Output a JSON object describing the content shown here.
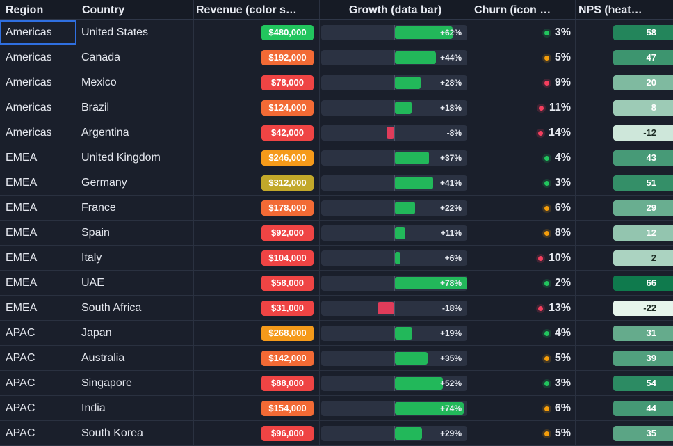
{
  "columns": {
    "region": "Region",
    "country": "Country",
    "revenue": "Revenue (color s…",
    "growth": "Growth (data bar)",
    "churn": "Churn (icon …",
    "nps": "NPS (heat…"
  },
  "rows": [
    {
      "region": "Americas",
      "country": "United States",
      "revenue": "$480,000",
      "growth": "+62%",
      "growth_value": 62,
      "churn": "3%",
      "churn_level": "ok",
      "nps": "58",
      "nps_value": 58
    },
    {
      "region": "Americas",
      "country": "Canada",
      "revenue": "$192,000",
      "growth": "+44%",
      "growth_value": 44,
      "churn": "5%",
      "churn_level": "warn",
      "nps": "47",
      "nps_value": 47
    },
    {
      "region": "Americas",
      "country": "Mexico",
      "revenue": "$78,000",
      "growth": "+28%",
      "growth_value": 28,
      "churn": "9%",
      "churn_level": "bad",
      "nps": "20",
      "nps_value": 20
    },
    {
      "region": "Americas",
      "country": "Brazil",
      "revenue": "$124,000",
      "growth": "+18%",
      "growth_value": 18,
      "churn": "11%",
      "churn_level": "bad",
      "nps": "8",
      "nps_value": 8
    },
    {
      "region": "Americas",
      "country": "Argentina",
      "revenue": "$42,000",
      "growth": "-8%",
      "growth_value": -8,
      "churn": "14%",
      "churn_level": "bad",
      "nps": "-12",
      "nps_value": -12
    },
    {
      "region": "EMEA",
      "country": "United Kingdom",
      "revenue": "$246,000",
      "growth": "+37%",
      "growth_value": 37,
      "churn": "4%",
      "churn_level": "ok",
      "nps": "43",
      "nps_value": 43
    },
    {
      "region": "EMEA",
      "country": "Germany",
      "revenue": "$312,000",
      "growth": "+41%",
      "growth_value": 41,
      "churn": "3%",
      "churn_level": "ok",
      "nps": "51",
      "nps_value": 51
    },
    {
      "region": "EMEA",
      "country": "France",
      "revenue": "$178,000",
      "growth": "+22%",
      "growth_value": 22,
      "churn": "6%",
      "churn_level": "warn",
      "nps": "29",
      "nps_value": 29
    },
    {
      "region": "EMEA",
      "country": "Spain",
      "revenue": "$92,000",
      "growth": "+11%",
      "growth_value": 11,
      "churn": "8%",
      "churn_level": "warn",
      "nps": "12",
      "nps_value": 12
    },
    {
      "region": "EMEA",
      "country": "Italy",
      "revenue": "$104,000",
      "growth": "+6%",
      "growth_value": 6,
      "churn": "10%",
      "churn_level": "bad",
      "nps": "2",
      "nps_value": 2
    },
    {
      "region": "EMEA",
      "country": "UAE",
      "revenue": "$58,000",
      "growth": "+78%",
      "growth_value": 78,
      "churn": "2%",
      "churn_level": "ok",
      "nps": "66",
      "nps_value": 66
    },
    {
      "region": "EMEA",
      "country": "South Africa",
      "revenue": "$31,000",
      "growth": "-18%",
      "growth_value": -18,
      "churn": "13%",
      "churn_level": "bad",
      "nps": "-22",
      "nps_value": -22
    },
    {
      "region": "APAC",
      "country": "Japan",
      "revenue": "$268,000",
      "growth": "+19%",
      "growth_value": 19,
      "churn": "4%",
      "churn_level": "ok",
      "nps": "31",
      "nps_value": 31
    },
    {
      "region": "APAC",
      "country": "Australia",
      "revenue": "$142,000",
      "growth": "+35%",
      "growth_value": 35,
      "churn": "5%",
      "churn_level": "warn",
      "nps": "39",
      "nps_value": 39
    },
    {
      "region": "APAC",
      "country": "Singapore",
      "revenue": "$88,000",
      "growth": "+52%",
      "growth_value": 52,
      "churn": "3%",
      "churn_level": "ok",
      "nps": "54",
      "nps_value": 54
    },
    {
      "region": "APAC",
      "country": "India",
      "revenue": "$154,000",
      "growth": "+74%",
      "growth_value": 74,
      "churn": "6%",
      "churn_level": "warn",
      "nps": "44",
      "nps_value": 44
    },
    {
      "region": "APAC",
      "country": "South Korea",
      "revenue": "$96,000",
      "growth": "+29%",
      "growth_value": 29,
      "churn": "5%",
      "churn_level": "warn",
      "nps": "35",
      "nps_value": 35
    }
  ],
  "colors": {
    "revenue_scale": [
      "#ef4444",
      "#f26a35",
      "#f59a1a",
      "#c2a82a",
      "#22c55e"
    ],
    "growth_positive": "#22b85a",
    "growth_negative": "#e03c5a",
    "churn_ok": "#22c55e",
    "churn_warn": "#f59e0b",
    "churn_bad": "#f43f5e",
    "nps_low": "#e6f5ec",
    "nps_high": "#0f7a4d",
    "selection": "#2f6fe0"
  },
  "selected_cell": "row 1, Region"
}
